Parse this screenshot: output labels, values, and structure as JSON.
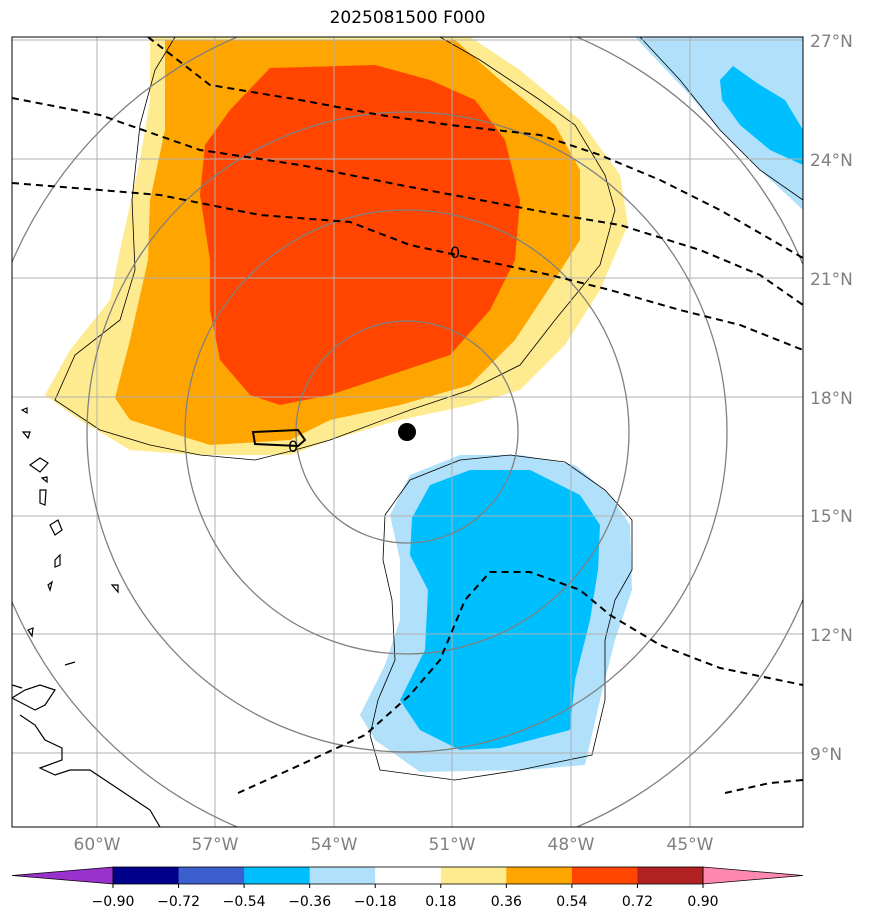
{
  "title": "2025081500 F000",
  "lat_labels": [
    "27°N",
    "24°N",
    "21°N",
    "18°N",
    "15°N",
    "12°N",
    "9°N"
  ],
  "lon_labels": [
    "60°W",
    "57°W",
    "54°W",
    "51°W",
    "48°W",
    "45°W"
  ],
  "contour_label_0": "0",
  "contour_label_0b": "0",
  "colorbar": {
    "ticks": [
      "−0.90",
      "−0.72",
      "−0.54",
      "−0.36",
      "−0.18",
      "0.18",
      "0.36",
      "0.54",
      "0.72",
      "0.90"
    ],
    "colors": [
      "#9932cc",
      "#00008b",
      "#3b5fcd",
      "#00bfff",
      "#b0e0fa",
      "#ffffff",
      "#ffeb8f",
      "#ffa500",
      "#ff4500",
      "#b22222",
      "#ff88b0"
    ]
  },
  "colors": {
    "range_circle": "#808080",
    "grid": "#b0b0b0",
    "coast": "#000000",
    "center_marker": "#000000"
  }
}
